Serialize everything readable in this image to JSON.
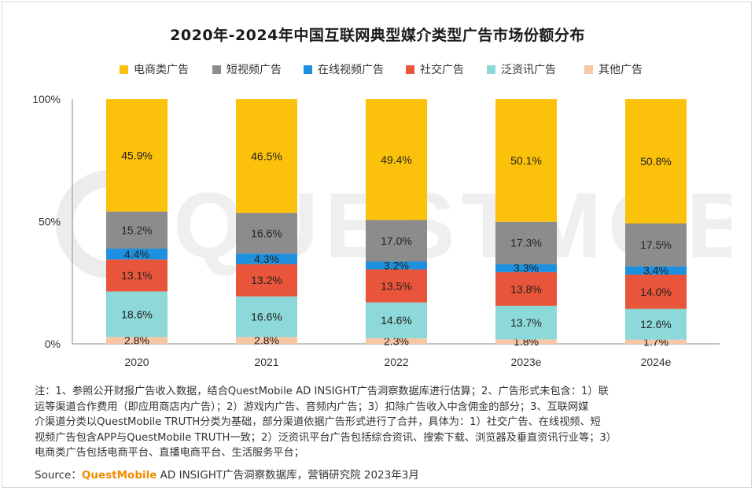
{
  "chart_data": {
    "type": "bar",
    "stacked": true,
    "title": "2020年-2024年中国互联网典型媒介类型广告市场份额分布",
    "categories": [
      "2020",
      "2021",
      "2022",
      "2023e",
      "2024e"
    ],
    "yticks": [
      "0%",
      "50%",
      "100%"
    ],
    "ylim": [
      0,
      100
    ],
    "legend_position": "top",
    "series": [
      {
        "name": "其他广告",
        "color": "#f7c6a5",
        "values": [
          2.8,
          2.8,
          2.3,
          1.8,
          1.7
        ],
        "labels": [
          "2.8%",
          "2.8%",
          "2.3%",
          "1.8%",
          "1.7%"
        ]
      },
      {
        "name": "泛资讯广告",
        "color": "#8dd8d8",
        "values": [
          18.6,
          16.6,
          14.6,
          13.7,
          12.6
        ],
        "labels": [
          "18.6%",
          "16.6%",
          "14.6%",
          "13.7%",
          "12.6%"
        ]
      },
      {
        "name": "社交广告",
        "color": "#e8553a",
        "values": [
          13.1,
          13.2,
          13.5,
          13.8,
          14.0
        ],
        "labels": [
          "13.1%",
          "13.2%",
          "13.5%",
          "13.8%",
          "14.0%"
        ]
      },
      {
        "name": "在线视频广告",
        "color": "#1e90e0",
        "values": [
          4.4,
          4.3,
          3.2,
          3.3,
          3.4
        ],
        "labels": [
          "4.4%",
          "4.3%",
          "3.2%",
          "3.3%",
          "3.4%"
        ]
      },
      {
        "name": "短视频广告",
        "color": "#8c8c8c",
        "values": [
          15.2,
          16.6,
          17.0,
          17.3,
          17.5
        ],
        "labels": [
          "15.2%",
          "16.6%",
          "17.0%",
          "17.3%",
          "17.5%"
        ]
      },
      {
        "name": "电商类广告",
        "color": "#fcc10a",
        "values": [
          45.9,
          46.5,
          49.4,
          50.1,
          50.8
        ],
        "labels": [
          "45.9%",
          "46.5%",
          "49.4%",
          "50.1%",
          "50.8%"
        ]
      }
    ],
    "legend_order": [
      "电商类广告",
      "短视频广告",
      "在线视频广告",
      "社交广告",
      "泛资讯广告",
      "其他广告"
    ]
  },
  "legend": [
    {
      "label": "电商类广告",
      "color": "#fcc10a"
    },
    {
      "label": "短视频广告",
      "color": "#8c8c8c"
    },
    {
      "label": "在线视频广告",
      "color": "#1e90e0"
    },
    {
      "label": "社交广告",
      "color": "#e8553a"
    },
    {
      "label": "泛资讯广告",
      "color": "#8dd8d8"
    },
    {
      "label": "其他广告",
      "color": "#f7c6a5"
    }
  ],
  "watermark": {
    "text": "QUESTMOBILE"
  },
  "notes": {
    "line1": "注：1、参照公开财报广告收入数据，结合QuestMobile AD INSIGHT广告洞察数据库进行估算；2、广告形式未包含：1）联",
    "line2": "运等渠道合作费用（即应用商店内广告）；2）游戏内广告、音频内广告；3）扣除广告收入中含佣金的部分；3、互联网媒",
    "line3": "介渠道分类以QuestMobile TRUTH分类为基础，部分渠道依据广告形式进行了合并，具体为：1）社交广告、在线视频、短",
    "line4": "视频广告包含APP与QuestMobile TRUTH一致；2）泛资讯平台广告包括综合资讯、搜索下载、浏览器及垂直资讯行业等；3）",
    "line5": "电商类广告包括电商平台、直播电商平台、生活服务平台；"
  },
  "source": {
    "prefix": "Source：",
    "brand": "QuestMobile",
    "rest": " AD INSIGHT广告洞察数据库，营销研究院 2023年3月"
  }
}
